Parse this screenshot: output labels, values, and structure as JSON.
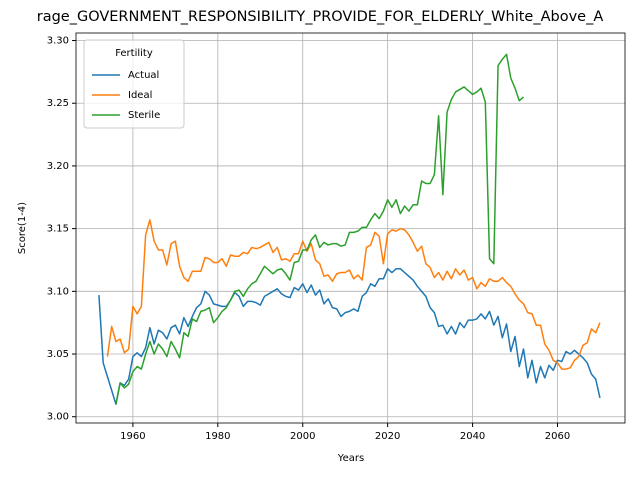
{
  "chart_data": {
    "type": "line",
    "title": "rage_GOVERNMENT_RESPONSIBILITY_PROVIDE_FOR_ELDERLY_White_Above_A",
    "xlabel": "Years",
    "ylabel": "Score(1-4)",
    "legend_title": "Fertility",
    "legend": "upper left",
    "grid": true,
    "xlim": [
      1946.6,
      2075.9
    ],
    "ylim": [
      2.995,
      3.306
    ],
    "xticks": [
      1960,
      1980,
      2000,
      2020,
      2040,
      2060
    ],
    "yticks": [
      {
        "value": 3.0,
        "label": "3.00"
      },
      3.05,
      {
        "value": 3.1,
        "label": "3.10"
      },
      3.15,
      {
        "value": 3.2,
        "label": "3.20"
      },
      3.25,
      {
        "value": 3.3,
        "label": "3.30"
      }
    ],
    "x": [
      1952,
      1953,
      1954,
      1955,
      1956,
      1957,
      1958,
      1959,
      1960,
      1961,
      1962,
      1963,
      1964,
      1965,
      1966,
      1967,
      1968,
      1969,
      1970,
      1971,
      1972,
      1973,
      1974,
      1975,
      1976,
      1977,
      1978,
      1979,
      1980,
      1981,
      1982,
      1983,
      1984,
      1985,
      1986,
      1987,
      1988,
      1989,
      1990,
      1991,
      1992,
      1993,
      1994,
      1995,
      1996,
      1997,
      1998,
      1999,
      2000,
      2001,
      2002,
      2003,
      2004,
      2005,
      2006,
      2007,
      2008,
      2009,
      2010,
      2011,
      2012,
      2013,
      2014,
      2015,
      2016,
      2017,
      2018,
      2019,
      2020,
      2021,
      2022,
      2023,
      2024,
      2025,
      2026,
      2027,
      2028,
      2029,
      2030,
      2031,
      2032,
      2033,
      2034,
      2035,
      2036,
      2037,
      2038,
      2039,
      2040,
      2041,
      2042,
      2043,
      2044,
      2045,
      2046,
      2047,
      2048,
      2049,
      2050,
      2051,
      2052,
      2053,
      2054,
      2055,
      2056,
      2057,
      2058,
      2059,
      2060,
      2061,
      2062,
      2063,
      2064,
      2065,
      2066,
      2067,
      2068,
      2069,
      2070
    ],
    "series": [
      {
        "name": "Actual",
        "color": "#1f77b4",
        "values": [
          3.097,
          3.043,
          3.032,
          3.021,
          3.01,
          3.027,
          3.025,
          3.03,
          3.048,
          3.051,
          3.048,
          3.055,
          3.071,
          3.058,
          3.069,
          3.067,
          3.062,
          3.071,
          3.073,
          3.066,
          3.079,
          3.072,
          3.08,
          3.087,
          3.09,
          3.1,
          3.097,
          3.09,
          3.089,
          3.088,
          3.088,
          3.093,
          3.099,
          3.096,
          3.088,
          3.092,
          3.092,
          3.091,
          3.089,
          3.096,
          3.098,
          3.1,
          3.102,
          3.098,
          3.096,
          3.095,
          3.103,
          3.101,
          3.106,
          3.099,
          3.105,
          3.097,
          3.101,
          3.09,
          3.094,
          3.087,
          3.086,
          3.08,
          3.083,
          3.084,
          3.086,
          3.084,
          3.096,
          3.099,
          3.106,
          3.104,
          3.11,
          3.11,
          3.118,
          3.115,
          3.118,
          3.118,
          3.115,
          3.112,
          3.109,
          3.104,
          3.1,
          3.096,
          3.087,
          3.083,
          3.072,
          3.073,
          3.066,
          3.072,
          3.066,
          3.075,
          3.071,
          3.077,
          3.077,
          3.078,
          3.082,
          3.078,
          3.084,
          3.073,
          3.08,
          3.063,
          3.074,
          3.052,
          3.064,
          3.04,
          3.054,
          3.031,
          3.045,
          3.027,
          3.04,
          3.031,
          3.041,
          3.037,
          3.045,
          3.044,
          3.052,
          3.05,
          3.053,
          3.05,
          3.047,
          3.043,
          3.034,
          3.03,
          3.015
        ]
      },
      {
        "name": "Ideal",
        "color": "#ff7f0e",
        "values": [
          null,
          null,
          3.048,
          3.072,
          3.06,
          3.062,
          3.051,
          3.054,
          3.088,
          3.082,
          3.088,
          3.145,
          3.157,
          3.14,
          3.133,
          3.133,
          3.121,
          3.138,
          3.14,
          3.12,
          3.111,
          3.108,
          3.116,
          3.116,
          3.116,
          3.127,
          3.126,
          3.123,
          3.123,
          3.126,
          3.12,
          3.129,
          3.128,
          3.128,
          3.131,
          3.13,
          3.135,
          3.134,
          3.135,
          3.137,
          3.139,
          3.131,
          3.135,
          3.125,
          3.126,
          3.124,
          3.13,
          3.13,
          3.14,
          3.132,
          3.138,
          3.125,
          3.122,
          3.112,
          3.113,
          3.108,
          3.114,
          3.115,
          3.115,
          3.117,
          3.11,
          3.113,
          3.109,
          3.135,
          3.137,
          3.147,
          3.144,
          3.122,
          3.146,
          3.149,
          3.148,
          3.15,
          3.149,
          3.145,
          3.139,
          3.132,
          3.136,
          3.122,
          3.119,
          3.111,
          3.115,
          3.109,
          3.116,
          3.11,
          3.118,
          3.113,
          3.117,
          3.109,
          3.111,
          3.102,
          3.107,
          3.104,
          3.11,
          3.108,
          3.108,
          3.111,
          3.107,
          3.104,
          3.098,
          3.093,
          3.09,
          3.083,
          3.082,
          3.073,
          3.073,
          3.058,
          3.053,
          3.045,
          3.043,
          3.038,
          3.038,
          3.039,
          3.045,
          3.048,
          3.057,
          3.059,
          3.07,
          3.067,
          3.075
        ]
      },
      {
        "name": "Sterile",
        "color": "#2ca02c",
        "values": [
          null,
          null,
          null,
          null,
          3.01,
          3.027,
          3.023,
          3.026,
          3.036,
          3.04,
          3.038,
          3.05,
          3.06,
          3.05,
          3.058,
          3.054,
          3.048,
          3.06,
          3.054,
          3.047,
          3.067,
          3.064,
          3.078,
          3.076,
          3.084,
          3.085,
          3.087,
          3.075,
          3.079,
          3.084,
          3.087,
          3.093,
          3.1,
          3.101,
          3.096,
          3.102,
          3.106,
          3.108,
          3.114,
          3.12,
          3.117,
          3.114,
          3.117,
          3.118,
          3.114,
          3.109,
          3.123,
          3.124,
          3.133,
          3.133,
          3.141,
          3.145,
          3.135,
          3.139,
          3.137,
          3.138,
          3.138,
          3.136,
          3.137,
          3.147,
          3.147,
          3.148,
          3.151,
          3.151,
          3.157,
          3.162,
          3.158,
          3.164,
          3.173,
          3.167,
          3.173,
          3.162,
          3.168,
          3.164,
          3.169,
          3.169,
          3.188,
          3.186,
          3.186,
          3.193,
          3.24,
          3.177,
          3.243,
          3.253,
          3.259,
          3.261,
          3.263,
          3.26,
          3.257,
          3.259,
          3.262,
          3.251,
          3.126,
          3.122,
          3.28,
          3.285,
          3.289,
          3.27,
          3.262,
          3.252,
          3.255,
          null,
          null,
          null,
          null,
          null,
          null,
          null,
          null,
          null,
          null,
          null,
          null,
          null,
          null,
          null,
          null,
          null,
          null
        ]
      }
    ]
  }
}
